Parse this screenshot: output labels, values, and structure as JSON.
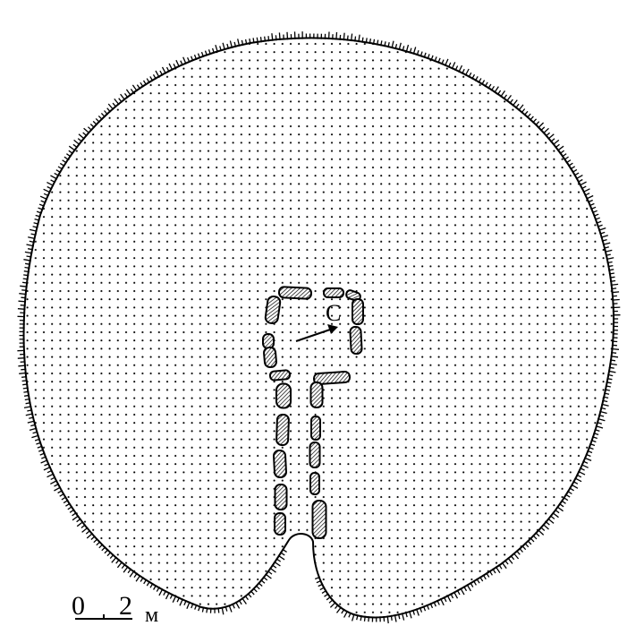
{
  "diagram": {
    "chamber_label": "C",
    "scale": {
      "zero": "0",
      "value": "2",
      "unit": "м"
    }
  },
  "colors": {
    "ink": "#000000",
    "fill_dots": "#000000",
    "background": "#ffffff"
  }
}
